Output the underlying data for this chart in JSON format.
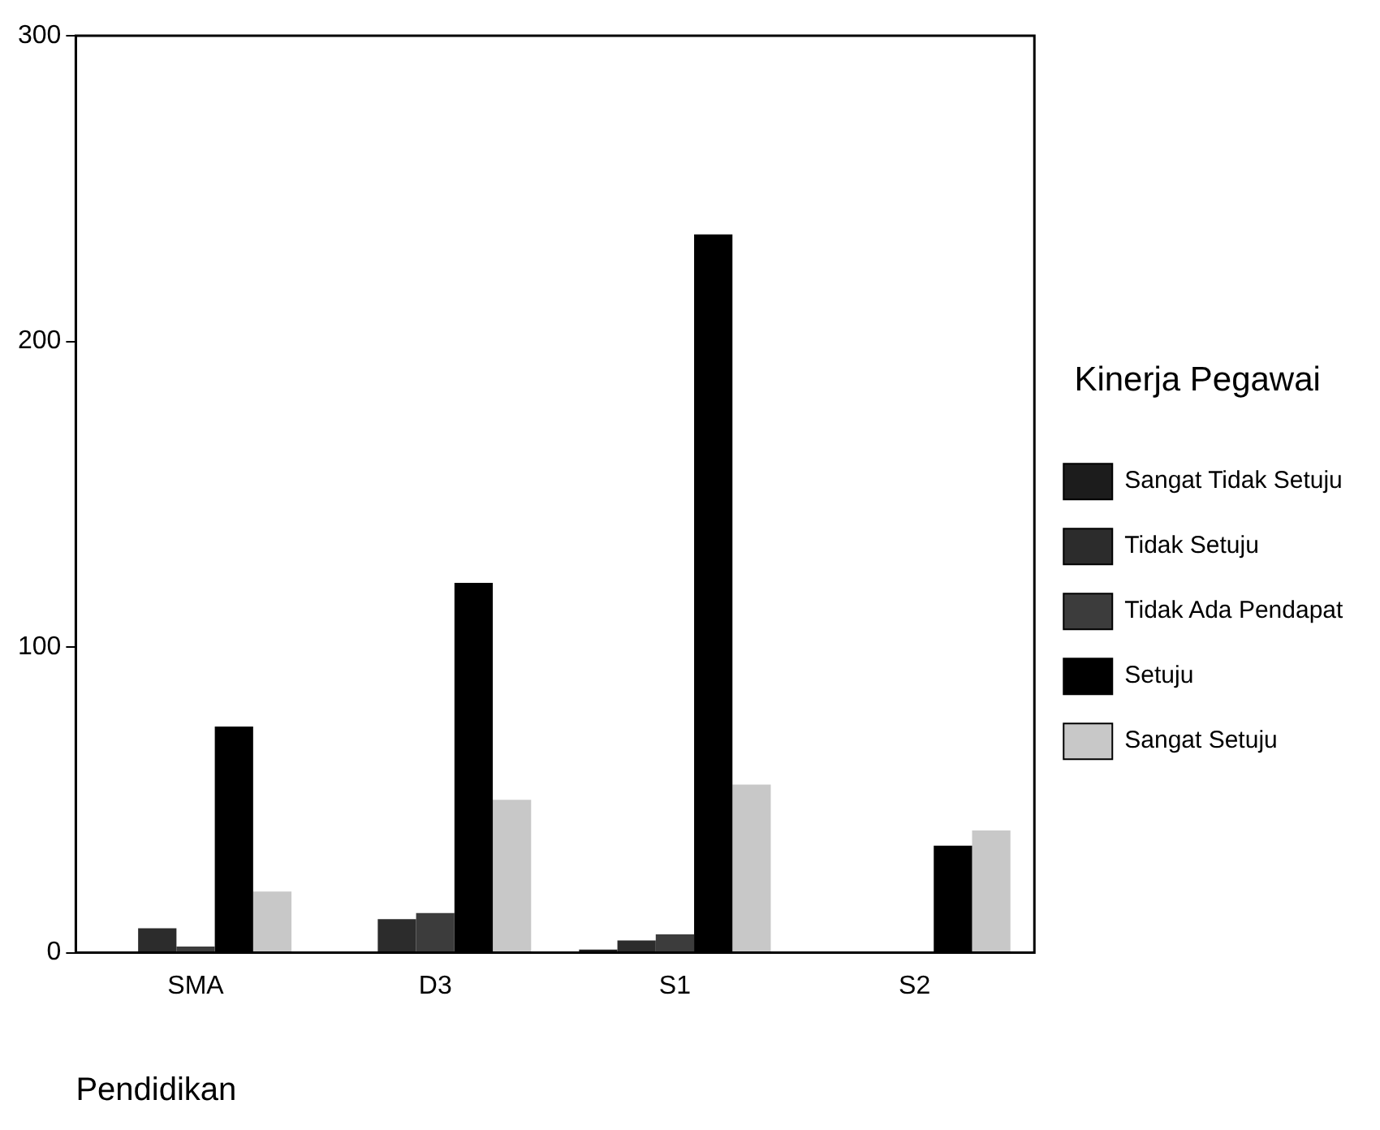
{
  "chart_data": {
    "type": "bar",
    "xlabel": "Pendidikan",
    "legend_title": "Kinerja Pegawai",
    "categories": [
      "SMA",
      "D3",
      "S1",
      "S2"
    ],
    "series": [
      {
        "name": "Sangat Tidak Setuju",
        "color": "#1c1c1c",
        "values": [
          0,
          0,
          1,
          0
        ]
      },
      {
        "name": "Tidak Setuju",
        "color": "#2c2c2c",
        "values": [
          8,
          11,
          4,
          0
        ]
      },
      {
        "name": "Tidak Ada Pendapat",
        "color": "#3c3c3c",
        "values": [
          2,
          13,
          6,
          0
        ]
      },
      {
        "name": "Setuju",
        "color": "#000000",
        "values": [
          74,
          121,
          235,
          35
        ]
      },
      {
        "name": "Sangat Setuju",
        "color": "#c8c8c8",
        "values": [
          20,
          50,
          55,
          40
        ]
      }
    ],
    "ylim": [
      0,
      300
    ],
    "yticks": [
      0,
      100,
      200,
      300
    ],
    "grid": false,
    "legend": "right"
  }
}
